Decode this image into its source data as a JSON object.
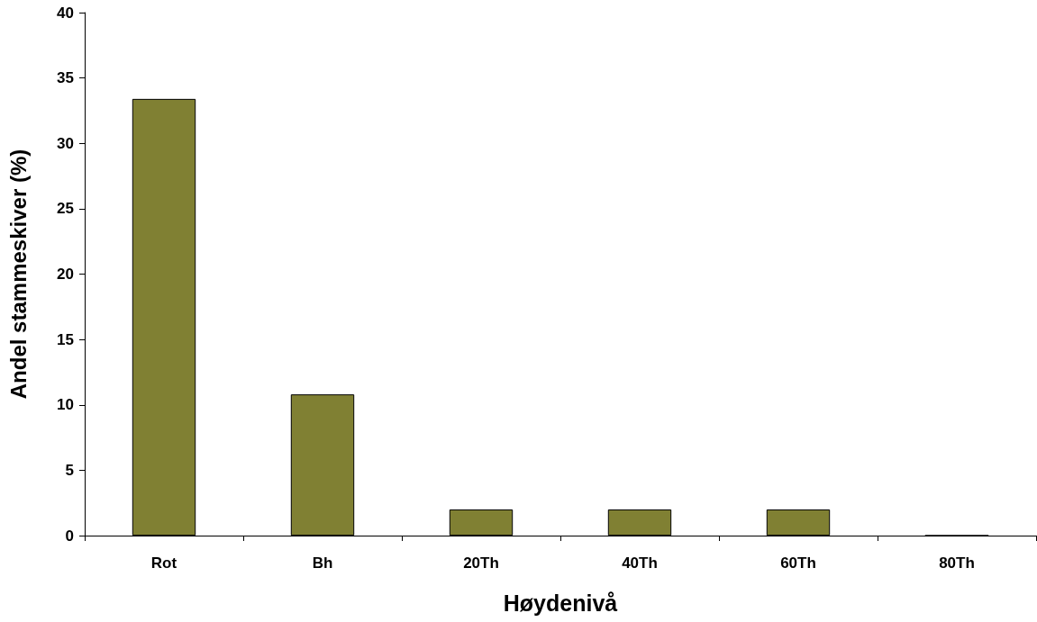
{
  "chart_data": {
    "type": "bar",
    "xlabel": "Høydenivå",
    "ylabel": "Andel stammeskiver (%)",
    "categories": [
      "Rot",
      "Bh",
      "20Th",
      "40Th",
      "60Th",
      "80Th"
    ],
    "values": [
      33.4,
      10.8,
      2,
      2,
      2,
      0
    ],
    "color": "#808033",
    "ylim": [
      0,
      40
    ],
    "yticks": [
      0,
      5,
      10,
      15,
      20,
      25,
      30,
      35,
      40
    ],
    "grid": false
  }
}
